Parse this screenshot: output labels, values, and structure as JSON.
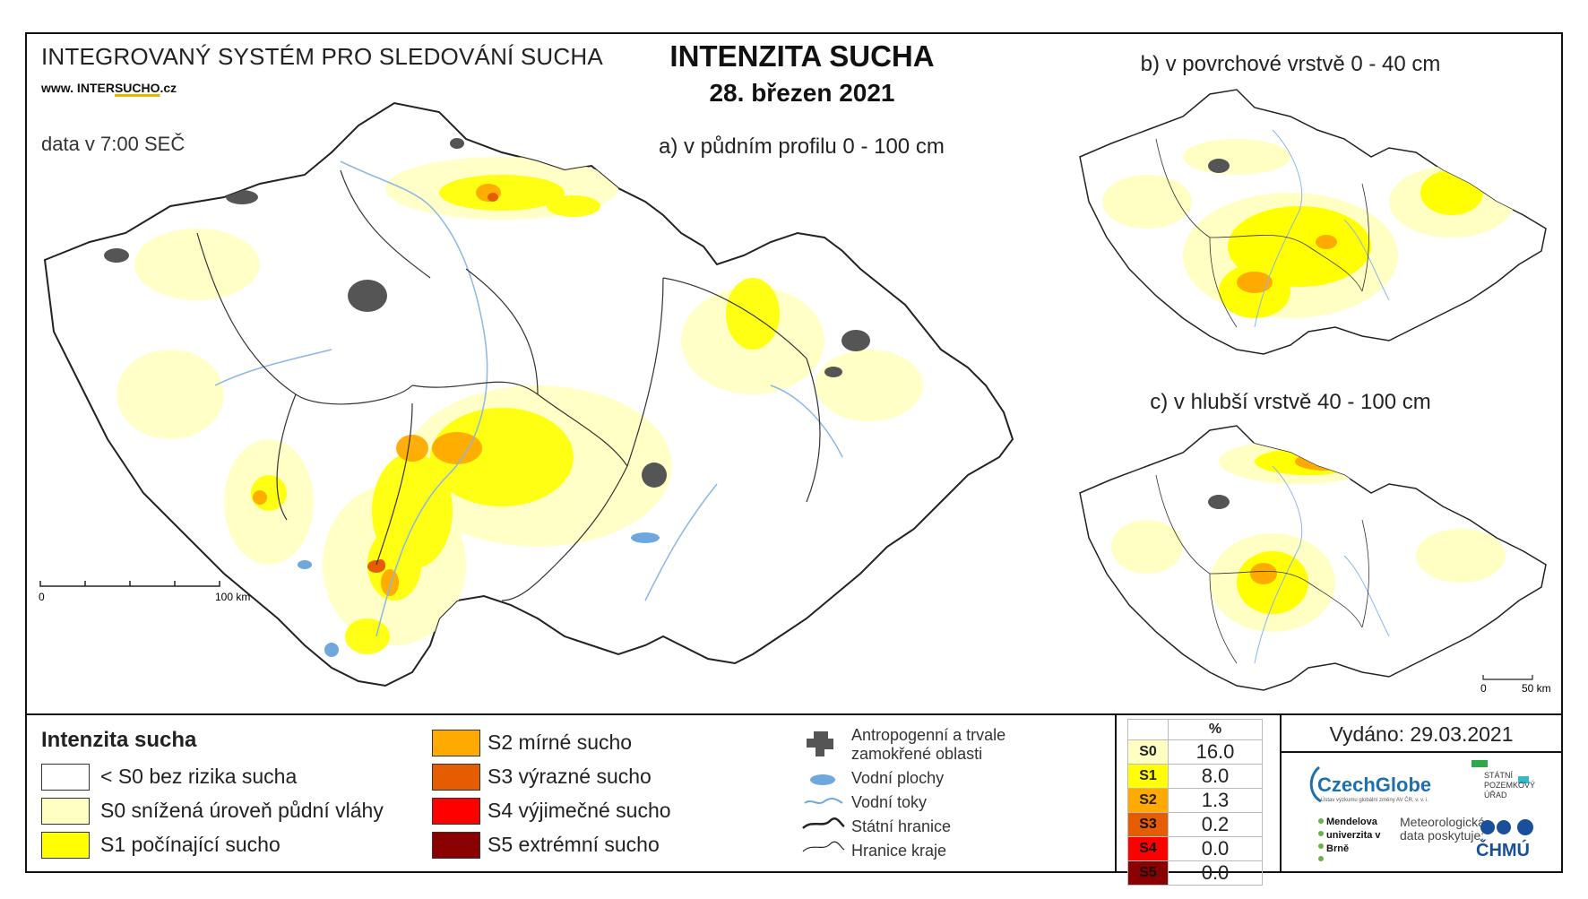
{
  "header": {
    "system_title": "INTEGROVANÝ SYSTÉM PRO SLEDOVÁNÍ SUCHA",
    "website_prefix": "www. INTER",
    "website_underlined": "SUCHO",
    "website_suffix": ".cz",
    "data_time": "data v 7:00 SEČ",
    "main_title": "INTENZITA SUCHA",
    "date": "28. březen 2021"
  },
  "maps": {
    "a_title": "a) v půdním profilu 0 - 100 cm",
    "b_title": "b) v povrchové vrstvě 0 - 40 cm",
    "c_title": "c) v hlubší vrstvě 40 - 100 cm",
    "scale_main_start": "0",
    "scale_main_end": "100 km",
    "scale_small_start": "0",
    "scale_small_end": "50 km"
  },
  "legend": {
    "title": "Intenzita sucha",
    "classes": [
      {
        "label": "< S0 bez rizika sucha",
        "color": "#ffffff"
      },
      {
        "label": "S0 snížená úroveň půdní vláhy",
        "color": "#ffffc4"
      },
      {
        "label": "S1 počínající sucho",
        "color": "#ffff00"
      },
      {
        "label": "S2 mírné sucho",
        "color": "#ffaa00"
      },
      {
        "label": "S3 výrazné sucho",
        "color": "#e65c00"
      },
      {
        "label": "S4 výjimečné sucho",
        "color": "#ff0000"
      },
      {
        "label": "S5 extrémní sucho",
        "color": "#8b0000"
      }
    ]
  },
  "symbols": {
    "urban": "Antropogenní a trvale zamokřené oblasti",
    "water_bodies": "Vodní plochy",
    "rivers": "Vodní toky",
    "state_border": "Státní hranice",
    "region_border": "Hranice kraje"
  },
  "stats": {
    "header": "%",
    "rows": [
      {
        "class": "S0",
        "value": "16.0",
        "color": "#ffffc4"
      },
      {
        "class": "S1",
        "value": "8.0",
        "color": "#ffff00"
      },
      {
        "class": "S2",
        "value": "1.3",
        "color": "#ffaa00"
      },
      {
        "class": "S3",
        "value": "0.2",
        "color": "#e65c00"
      },
      {
        "class": "S4",
        "value": "0.0",
        "color": "#ff0000"
      },
      {
        "class": "S5",
        "value": "0.0",
        "color": "#8b0000"
      }
    ]
  },
  "footer": {
    "issued": "Vydáno: 29.03.2021",
    "czechglobe": "CzechGlobe",
    "czechglobe_sub": "Ústav výzkumu globální změny AV ČR, v. v. i.",
    "spu": "STÁTNÍ POZEMKOVÝ ÚŘAD",
    "mendel": "Mendelova univerzita v Brně",
    "meteo": "Meteorologická data poskytuje:",
    "chmu": "ČHMÚ"
  }
}
